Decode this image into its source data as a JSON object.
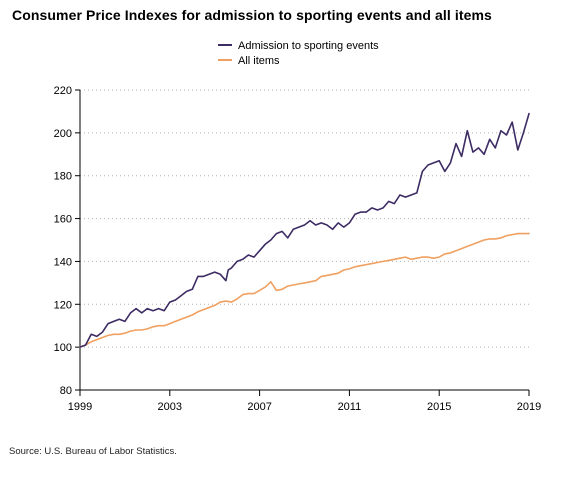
{
  "source": "Source: U.S. Bureau of Labor Statistics.",
  "chart_data": {
    "type": "line",
    "title": "Consumer Price Indexes for admission to sporting events and all items",
    "xlabel": "",
    "ylabel": "",
    "xlim": [
      1999,
      2019
    ],
    "ylim": [
      80,
      220
    ],
    "x_ticks": [
      "1999",
      "2003",
      "2007",
      "2011",
      "2015",
      "2019"
    ],
    "x_tick_values": [
      1999,
      2003,
      2007,
      2011,
      2015,
      2019
    ],
    "y_ticks": [
      "80",
      "100",
      "120",
      "140",
      "160",
      "180",
      "200",
      "220"
    ],
    "y_tick_values": [
      80,
      100,
      120,
      140,
      160,
      180,
      200,
      220
    ],
    "grid": "horizontal dotted",
    "legend_position": "top-center",
    "colors": {
      "sporting": "#3d2b63",
      "all_items": "#f0a060",
      "axis": "#000000",
      "grid": "#b0b0b0"
    },
    "series": [
      {
        "name": "Admission to sporting events",
        "color": "#3d2b63",
        "x": [
          1999.0,
          1999.25,
          1999.5,
          1999.75,
          2000.0,
          2000.25,
          2000.5,
          2000.75,
          2001.0,
          2001.25,
          2001.5,
          2001.75,
          2002.0,
          2002.25,
          2002.5,
          2002.75,
          2003.0,
          2003.25,
          2003.5,
          2003.75,
          2004.0,
          2004.25,
          2004.5,
          2004.75,
          2005.0,
          2005.25,
          2005.5,
          2005.6,
          2005.75,
          2006.0,
          2006.25,
          2006.5,
          2006.75,
          2007.0,
          2007.25,
          2007.5,
          2007.75,
          2008.0,
          2008.25,
          2008.5,
          2008.75,
          2009.0,
          2009.25,
          2009.5,
          2009.75,
          2010.0,
          2010.25,
          2010.5,
          2010.75,
          2011.0,
          2011.25,
          2011.5,
          2011.75,
          2012.0,
          2012.25,
          2012.5,
          2012.75,
          2013.0,
          2013.25,
          2013.5,
          2013.75,
          2014.0,
          2014.25,
          2014.5,
          2014.75,
          2015.0,
          2015.25,
          2015.5,
          2015.75,
          2016.0,
          2016.25,
          2016.5,
          2016.75,
          2017.0,
          2017.25,
          2017.5,
          2017.75,
          2018.0,
          2018.25,
          2018.5,
          2018.75,
          2019.0
        ],
        "values": [
          100,
          101,
          106,
          105,
          107,
          111,
          112,
          113,
          112,
          116,
          118,
          116,
          118,
          117,
          118,
          117,
          121,
          122,
          124,
          126,
          127,
          133,
          133,
          134,
          135,
          134,
          131,
          136,
          137,
          140,
          141,
          143,
          142,
          145,
          148,
          150,
          153,
          154,
          151,
          155,
          156,
          157,
          159,
          157,
          158,
          157,
          155,
          158,
          156,
          158,
          162,
          163,
          163,
          165,
          164,
          165,
          168,
          167,
          171,
          170,
          171,
          172,
          182,
          185,
          186,
          187,
          182,
          186,
          195,
          189,
          201,
          191,
          193,
          190,
          197,
          193,
          201,
          199,
          205,
          192,
          200,
          209
        ]
      },
      {
        "name": "All items",
        "color": "#f0a060",
        "x": [
          1999.0,
          1999.25,
          1999.5,
          1999.75,
          2000.0,
          2000.25,
          2000.5,
          2000.75,
          2001.0,
          2001.25,
          2001.5,
          2001.75,
          2002.0,
          2002.25,
          2002.5,
          2002.75,
          2003.0,
          2003.25,
          2003.5,
          2003.75,
          2004.0,
          2004.25,
          2004.5,
          2004.75,
          2005.0,
          2005.25,
          2005.5,
          2005.75,
          2006.0,
          2006.25,
          2006.5,
          2006.75,
          2007.0,
          2007.25,
          2007.5,
          2007.75,
          2008.0,
          2008.25,
          2008.5,
          2008.75,
          2009.0,
          2009.25,
          2009.5,
          2009.75,
          2010.0,
          2010.25,
          2010.5,
          2010.75,
          2011.0,
          2011.25,
          2011.5,
          2011.75,
          2012.0,
          2012.25,
          2012.5,
          2012.75,
          2013.0,
          2013.25,
          2013.5,
          2013.75,
          2014.0,
          2014.25,
          2014.5,
          2014.75,
          2015.0,
          2015.25,
          2015.5,
          2015.75,
          2016.0,
          2016.25,
          2016.5,
          2016.75,
          2017.0,
          2017.25,
          2017.5,
          2017.75,
          2018.0,
          2018.25,
          2018.5,
          2018.75,
          2019.0
        ],
        "values": [
          100,
          101,
          102.5,
          103.5,
          104.5,
          105.5,
          106,
          106,
          106.5,
          107.5,
          108,
          108,
          108.5,
          109.5,
          110,
          110,
          111,
          112,
          113,
          114,
          115,
          116.5,
          117.5,
          118.5,
          119.5,
          121,
          121.5,
          121,
          122.5,
          124.5,
          125,
          125,
          126.5,
          128,
          130.5,
          126.5,
          127,
          128.5,
          129,
          129.5,
          130,
          130.5,
          131,
          133,
          133.5,
          134,
          134.5,
          136,
          136.5,
          137.5,
          138,
          138.5,
          139,
          139.5,
          140,
          140.5,
          141,
          141.5,
          142,
          141,
          141.5,
          142,
          142,
          141.5,
          142,
          143.5,
          144,
          145,
          146,
          147,
          148,
          149,
          150,
          150.5,
          150.5,
          151,
          152,
          152.5,
          153,
          153,
          153
        ]
      }
    ]
  }
}
